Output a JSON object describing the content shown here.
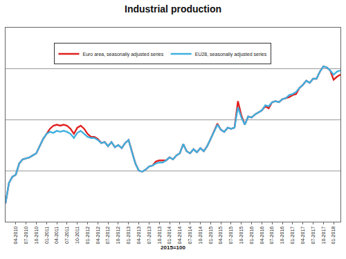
{
  "chart_data": {
    "type": "line",
    "title": "Industrial production",
    "x_label": "2015=100",
    "categories": [
      null,
      null,
      null,
      "04-2010",
      null,
      null,
      "07-2010",
      null,
      null,
      "10-2010",
      null,
      null,
      "01-2011",
      null,
      null,
      "04-2011",
      null,
      null,
      "07-2011",
      null,
      null,
      "10-2011",
      null,
      null,
      "01-2012",
      null,
      null,
      "04-2012",
      null,
      null,
      "07-2012",
      null,
      null,
      "10-2012",
      null,
      null,
      "01-2013",
      null,
      null,
      "04-2013",
      null,
      null,
      "07-2013",
      null,
      null,
      "10-2013",
      null,
      null,
      "01-2014",
      null,
      null,
      "04-2014",
      null,
      null,
      "07-2014",
      null,
      null,
      "10-2014",
      null,
      null,
      "01-2015",
      null,
      null,
      "04-2015",
      null,
      null,
      "07-2015",
      null,
      null,
      "10-2015",
      null,
      null,
      "01-2016",
      null,
      null,
      "04-2016",
      null,
      null,
      "07-2016",
      null,
      null,
      "10-2016",
      null,
      null,
      "01-2017",
      null,
      null,
      "04-2017",
      null,
      null,
      "07-2017",
      null,
      null,
      "10-2017",
      null,
      null,
      "01-2018",
      null,
      null
    ],
    "series": [
      {
        "name": "Euro area, seasonally adjusted series",
        "color": "#e0201f",
        "line_style": "solid",
        "values": [
          91.8,
          93.8,
          94.4,
          94.6,
          95.7,
          96.1,
          96.2,
          96.3,
          96.5,
          96.7,
          97.4,
          98.1,
          98.6,
          99.1,
          99.4,
          99.5,
          99.4,
          99.5,
          99.4,
          99.1,
          98.6,
          99.2,
          99.4,
          99.1,
          98.6,
          98.3,
          98.3,
          98.1,
          97.7,
          97.8,
          97.4,
          97.8,
          97.3,
          97.5,
          97.2,
          97.7,
          98.0,
          96.8,
          95.7,
          95.0,
          94.9,
          95.1,
          95.4,
          95.5,
          95.9,
          96.0,
          96.0,
          96.0,
          96.3,
          96.1,
          96.5,
          96.7,
          97.6,
          96.9,
          96.7,
          97.1,
          96.8,
          97.2,
          96.9,
          97.4,
          98.1,
          98.9,
          99.6,
          99.0,
          98.8,
          99.2,
          99.1,
          99.2,
          101.8,
          100.4,
          99.5,
          100.3,
          100.2,
          100.5,
          100.7,
          100.9,
          101.3,
          101.1,
          101.7,
          101.8,
          101.7,
          102.0,
          102.1,
          102.2,
          102.4,
          102.5,
          103.1,
          103.4,
          103.8,
          103.6,
          104.0,
          104.0,
          104.7,
          105.2,
          105.1,
          104.8,
          103.9,
          104.2,
          104.4
        ]
      },
      {
        "name": "EU28, seasonally adjusted series",
        "color": "#3fb0e0",
        "line_style": "solid",
        "values": [
          91.8,
          93.8,
          94.4,
          94.6,
          95.7,
          96.1,
          96.2,
          96.3,
          96.5,
          96.7,
          97.4,
          98.1,
          98.6,
          98.8,
          98.7,
          98.9,
          98.8,
          98.9,
          98.8,
          98.6,
          98.2,
          98.7,
          98.9,
          98.6,
          98.3,
          98.2,
          98.2,
          98.0,
          97.7,
          97.8,
          97.4,
          97.8,
          97.3,
          97.5,
          97.2,
          97.7,
          98.0,
          96.8,
          95.7,
          95.0,
          94.9,
          95.1,
          95.4,
          95.5,
          95.7,
          95.8,
          95.8,
          96.0,
          96.3,
          96.1,
          96.5,
          96.7,
          97.6,
          96.9,
          96.7,
          97.1,
          96.8,
          97.2,
          96.9,
          97.4,
          98.1,
          98.9,
          99.5,
          99.0,
          98.8,
          99.2,
          99.1,
          99.2,
          101.2,
          100.2,
          99.5,
          100.3,
          100.2,
          100.5,
          100.7,
          100.9,
          101.4,
          101.3,
          101.7,
          101.8,
          101.7,
          102.0,
          102.1,
          102.4,
          102.5,
          102.7,
          103.1,
          103.4,
          103.8,
          103.6,
          104.0,
          104.0,
          104.7,
          105.2,
          105.1,
          104.8,
          104.4,
          104.7,
          104.8
        ]
      }
    ],
    "ylim": [
      90,
      109
    ],
    "yticks": [
      90,
      95,
      100,
      105
    ],
    "grid": true,
    "legend": "top",
    "tick_labels": "x"
  }
}
